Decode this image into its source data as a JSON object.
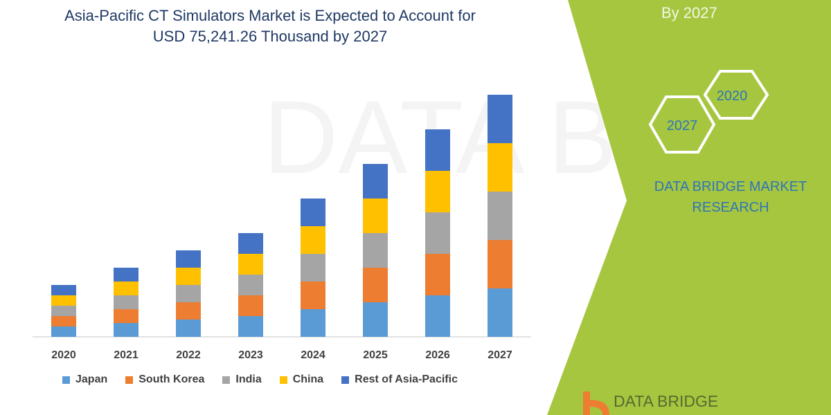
{
  "header": {
    "title_line1": "Asia-Pacific CT Simulators Market is Expected to Account for",
    "title_line2": "USD 75,241.26 Thousand by 2027"
  },
  "side_panel": {
    "subtitle": "By 2027",
    "hex_top": "2020",
    "hex_bottom": "2027",
    "brand_line1": "DATA BRIDGE MARKET",
    "brand_line2": "RESEARCH",
    "logo_text": "DATA BRIDGE",
    "watermark": "DATA BRIDGE",
    "color": "#A6C640"
  },
  "chart_data": {
    "type": "bar",
    "stacked": true,
    "categories": [
      "2020",
      "2021",
      "2022",
      "2023",
      "2024",
      "2025",
      "2026",
      "2027"
    ],
    "series": [
      {
        "name": "Japan",
        "color": "#5B9BD5",
        "values": [
          15,
          20,
          25,
          30,
          40,
          50,
          60,
          70
        ]
      },
      {
        "name": "South Korea",
        "color": "#ED7D31",
        "values": [
          15,
          20,
          25,
          30,
          40,
          50,
          60,
          70
        ]
      },
      {
        "name": "India",
        "color": "#A5A5A5",
        "values": [
          15,
          20,
          25,
          30,
          40,
          50,
          60,
          70
        ]
      },
      {
        "name": "China",
        "color": "#FFC000",
        "values": [
          15,
          20,
          25,
          30,
          40,
          50,
          60,
          70
        ]
      },
      {
        "name": "Rest of Asia-Pacific",
        "color": "#4472C4",
        "values": [
          15,
          20,
          25,
          30,
          40,
          50,
          60,
          70
        ]
      }
    ],
    "y_axis_shown": false,
    "grid": false,
    "legend": "bottom"
  }
}
